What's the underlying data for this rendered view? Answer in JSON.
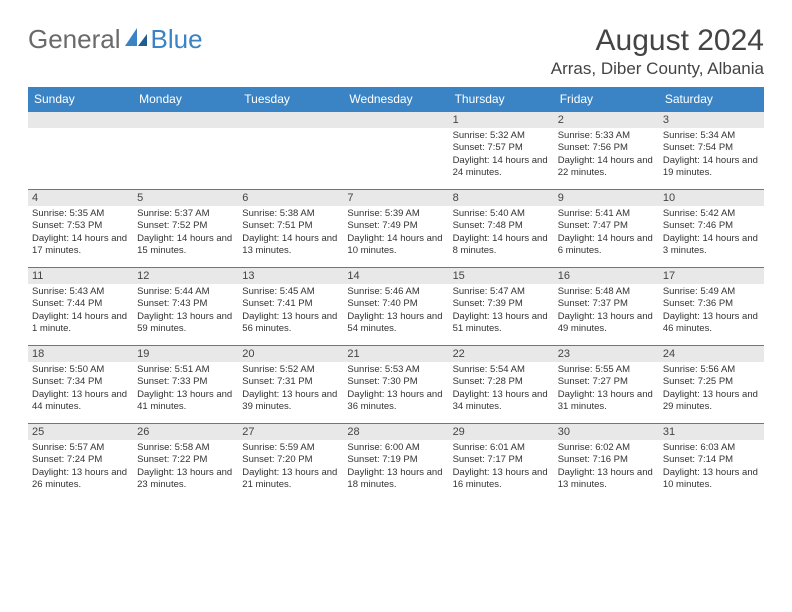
{
  "logo": {
    "text_general": "General",
    "text_blue": "Blue"
  },
  "title": "August 2024",
  "location": "Arras, Diber County, Albania",
  "colors": {
    "header_bg": "#3a84c5",
    "daynum_bg": "#e8e8e8",
    "border": "#3a84c5",
    "text": "#333333"
  },
  "day_names": [
    "Sunday",
    "Monday",
    "Tuesday",
    "Wednesday",
    "Thursday",
    "Friday",
    "Saturday"
  ],
  "leading_blanks": 4,
  "days": [
    {
      "n": "1",
      "sr": "5:32 AM",
      "ss": "7:57 PM",
      "dl": "14 hours and 24 minutes."
    },
    {
      "n": "2",
      "sr": "5:33 AM",
      "ss": "7:56 PM",
      "dl": "14 hours and 22 minutes."
    },
    {
      "n": "3",
      "sr": "5:34 AM",
      "ss": "7:54 PM",
      "dl": "14 hours and 19 minutes."
    },
    {
      "n": "4",
      "sr": "5:35 AM",
      "ss": "7:53 PM",
      "dl": "14 hours and 17 minutes."
    },
    {
      "n": "5",
      "sr": "5:37 AM",
      "ss": "7:52 PM",
      "dl": "14 hours and 15 minutes."
    },
    {
      "n": "6",
      "sr": "5:38 AM",
      "ss": "7:51 PM",
      "dl": "14 hours and 13 minutes."
    },
    {
      "n": "7",
      "sr": "5:39 AM",
      "ss": "7:49 PM",
      "dl": "14 hours and 10 minutes."
    },
    {
      "n": "8",
      "sr": "5:40 AM",
      "ss": "7:48 PM",
      "dl": "14 hours and 8 minutes."
    },
    {
      "n": "9",
      "sr": "5:41 AM",
      "ss": "7:47 PM",
      "dl": "14 hours and 6 minutes."
    },
    {
      "n": "10",
      "sr": "5:42 AM",
      "ss": "7:46 PM",
      "dl": "14 hours and 3 minutes."
    },
    {
      "n": "11",
      "sr": "5:43 AM",
      "ss": "7:44 PM",
      "dl": "14 hours and 1 minute."
    },
    {
      "n": "12",
      "sr": "5:44 AM",
      "ss": "7:43 PM",
      "dl": "13 hours and 59 minutes."
    },
    {
      "n": "13",
      "sr": "5:45 AM",
      "ss": "7:41 PM",
      "dl": "13 hours and 56 minutes."
    },
    {
      "n": "14",
      "sr": "5:46 AM",
      "ss": "7:40 PM",
      "dl": "13 hours and 54 minutes."
    },
    {
      "n": "15",
      "sr": "5:47 AM",
      "ss": "7:39 PM",
      "dl": "13 hours and 51 minutes."
    },
    {
      "n": "16",
      "sr": "5:48 AM",
      "ss": "7:37 PM",
      "dl": "13 hours and 49 minutes."
    },
    {
      "n": "17",
      "sr": "5:49 AM",
      "ss": "7:36 PM",
      "dl": "13 hours and 46 minutes."
    },
    {
      "n": "18",
      "sr": "5:50 AM",
      "ss": "7:34 PM",
      "dl": "13 hours and 44 minutes."
    },
    {
      "n": "19",
      "sr": "5:51 AM",
      "ss": "7:33 PM",
      "dl": "13 hours and 41 minutes."
    },
    {
      "n": "20",
      "sr": "5:52 AM",
      "ss": "7:31 PM",
      "dl": "13 hours and 39 minutes."
    },
    {
      "n": "21",
      "sr": "5:53 AM",
      "ss": "7:30 PM",
      "dl": "13 hours and 36 minutes."
    },
    {
      "n": "22",
      "sr": "5:54 AM",
      "ss": "7:28 PM",
      "dl": "13 hours and 34 minutes."
    },
    {
      "n": "23",
      "sr": "5:55 AM",
      "ss": "7:27 PM",
      "dl": "13 hours and 31 minutes."
    },
    {
      "n": "24",
      "sr": "5:56 AM",
      "ss": "7:25 PM",
      "dl": "13 hours and 29 minutes."
    },
    {
      "n": "25",
      "sr": "5:57 AM",
      "ss": "7:24 PM",
      "dl": "13 hours and 26 minutes."
    },
    {
      "n": "26",
      "sr": "5:58 AM",
      "ss": "7:22 PM",
      "dl": "13 hours and 23 minutes."
    },
    {
      "n": "27",
      "sr": "5:59 AM",
      "ss": "7:20 PM",
      "dl": "13 hours and 21 minutes."
    },
    {
      "n": "28",
      "sr": "6:00 AM",
      "ss": "7:19 PM",
      "dl": "13 hours and 18 minutes."
    },
    {
      "n": "29",
      "sr": "6:01 AM",
      "ss": "7:17 PM",
      "dl": "13 hours and 16 minutes."
    },
    {
      "n": "30",
      "sr": "6:02 AM",
      "ss": "7:16 PM",
      "dl": "13 hours and 13 minutes."
    },
    {
      "n": "31",
      "sr": "6:03 AM",
      "ss": "7:14 PM",
      "dl": "13 hours and 10 minutes."
    }
  ],
  "labels": {
    "sunrise": "Sunrise: ",
    "sunset": "Sunset: ",
    "daylight": "Daylight: "
  }
}
